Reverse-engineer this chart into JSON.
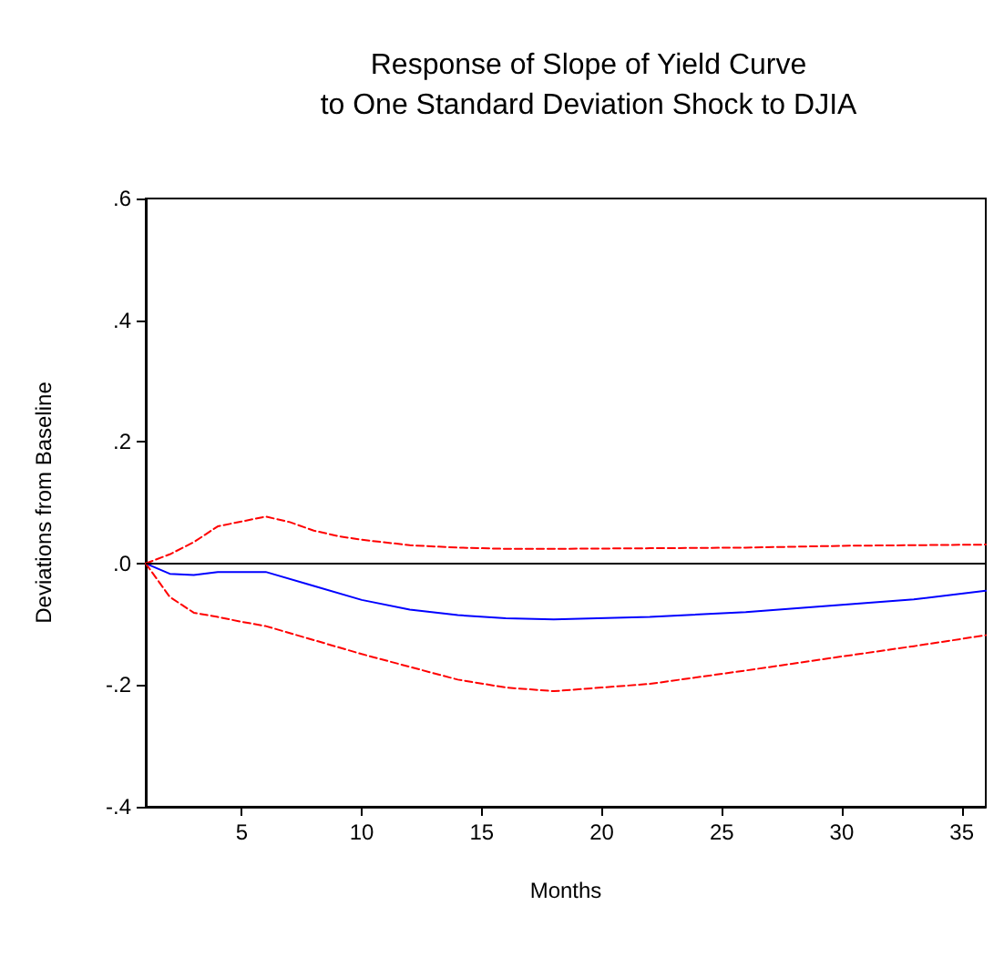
{
  "chart_data": {
    "type": "line",
    "title": "Response of Slope of Yield Curve\nto One Standard Deviation Shock to DJIA",
    "xlabel": "Months",
    "ylabel": "Deviations from Baseline",
    "xlim": [
      1,
      36
    ],
    "xticks": [
      5,
      10,
      15,
      20,
      25,
      30,
      35
    ],
    "ylim": [
      -0.4,
      0.6
    ],
    "yticks": [
      {
        "value": -0.4,
        "label": "-.4"
      },
      {
        "value": -0.2,
        "label": "-.2"
      },
      {
        "value": 0,
        "label": ".0"
      },
      {
        "value": 0.2,
        "label": ".2"
      },
      {
        "value": 0.4,
        "label": ".4"
      },
      {
        "value": 0.6,
        "label": ".6"
      }
    ],
    "grid": false,
    "marker": "none",
    "ref_lines": [
      {
        "axis": "y",
        "value": 0,
        "color": "#000000",
        "line_style": "solid"
      }
    ],
    "series": [
      {
        "color": "#0000ff",
        "line_style": "solid",
        "x": [
          1,
          2,
          3,
          4,
          5,
          6,
          8,
          10,
          12,
          14,
          16,
          18,
          22,
          26,
          30,
          33,
          36
        ],
        "values": [
          0,
          -0.017,
          -0.019,
          -0.014,
          -0.014,
          -0.014,
          -0.037,
          -0.06,
          -0.076,
          -0.085,
          -0.09,
          -0.092,
          -0.088,
          -0.08,
          -0.068,
          -0.059,
          -0.045
        ]
      },
      {
        "color": "#ff0000",
        "line_style": "dashed",
        "x": [
          1,
          2,
          3,
          4,
          5,
          6,
          7,
          8,
          9,
          10,
          12,
          14,
          16,
          18,
          22,
          26,
          30,
          36
        ],
        "values": [
          0,
          0.015,
          0.035,
          0.061,
          0.069,
          0.077,
          0.068,
          0.054,
          0.045,
          0.039,
          0.03,
          0.026,
          0.024,
          0.024,
          0.025,
          0.026,
          0.029,
          0.031
        ]
      },
      {
        "color": "#ff0000",
        "line_style": "dashed",
        "x": [
          1,
          2,
          3,
          4,
          5,
          6,
          8,
          10,
          12,
          14,
          16,
          18,
          20,
          22,
          26,
          30,
          33,
          36
        ],
        "values": [
          0,
          -0.055,
          -0.081,
          -0.088,
          -0.096,
          -0.103,
          -0.126,
          -0.149,
          -0.17,
          -0.191,
          -0.204,
          -0.21,
          -0.204,
          -0.198,
          -0.176,
          -0.153,
          -0.136,
          -0.118
        ]
      }
    ]
  }
}
